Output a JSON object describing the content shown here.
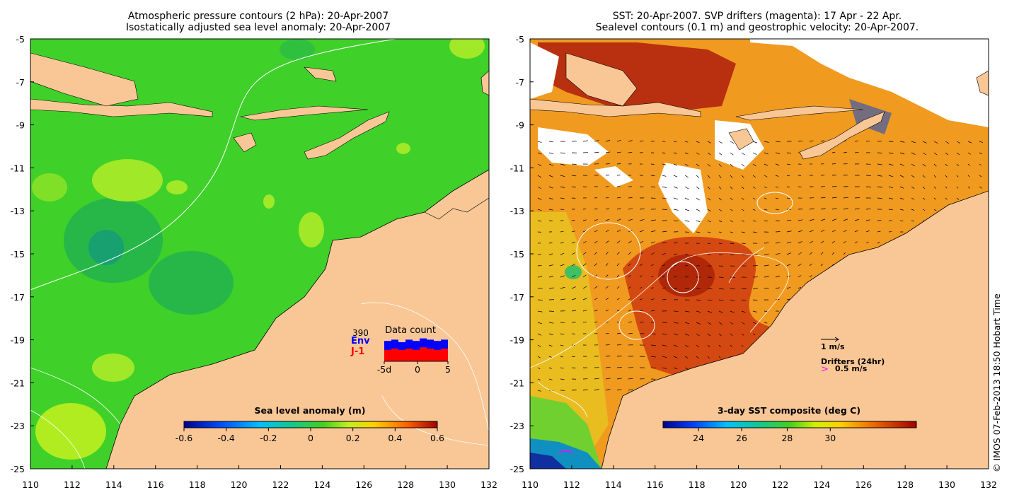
{
  "left_panel": {
    "title_line1": "Atmospheric pressure contours (2 hPa): 20-Apr-2007",
    "title_line2": "Isostatically adjusted sea level anomaly: 20-Apr-2007",
    "x_ticks": [
      "110",
      "112",
      "114",
      "116",
      "118",
      "120",
      "122",
      "124",
      "126",
      "128",
      "130",
      "132"
    ],
    "y_ticks": [
      "-5",
      "-7",
      "-9",
      "-11",
      "-13",
      "-15",
      "-17",
      "-19",
      "-21",
      "-23",
      "-25"
    ],
    "colorbar_label": "Sea level anomaly (m)",
    "colorbar_ticks": [
      "-0.6",
      "-0.4",
      "-0.2",
      "0",
      "0.2",
      "0.4",
      "0.6"
    ],
    "data_count": {
      "title": "Data count",
      "max_label": "390",
      "env_label": "Env",
      "j1_label": "J-1",
      "x_ticks": [
        "-5d",
        "0",
        "5"
      ],
      "env_fraction": [
        0.8,
        0.85,
        0.75,
        0.85,
        0.8,
        0.9,
        0.85,
        0.8,
        0.85
      ],
      "j1_fraction": [
        0.45,
        0.5,
        0.45,
        0.5,
        0.45,
        0.55,
        0.5,
        0.45,
        0.5
      ]
    }
  },
  "right_panel": {
    "title_line1": "SST: 20-Apr-2007. SVP drifters (magenta): 17 Apr - 22 Apr.",
    "title_line2": "Sealevel contours (0.1 m) and geostrophic velocity: 20-Apr-2007.",
    "x_ticks": [
      "110",
      "112",
      "114",
      "116",
      "118",
      "120",
      "122",
      "124",
      "126",
      "128",
      "130",
      "132"
    ],
    "y_ticks": [
      "-5",
      "-7",
      "-9",
      "-11",
      "-13",
      "-15",
      "-17",
      "-19",
      "-21",
      "-23",
      "-25"
    ],
    "colorbar_label": "3-day SST composite (deg C)",
    "colorbar_ticks": [
      "24",
      "26",
      "28",
      "30"
    ],
    "velocity_legend": "1 m/s",
    "drifters_legend": "Drifters (24hr)",
    "drifters_speed": "0.5 m/s"
  },
  "credit": "© IMOS 07-Feb-2013 18:50 Hobart Time",
  "colors": {
    "land": "#f9c796",
    "sea_base_left": "#3fd02a",
    "sea_base_right": "#f09a20",
    "env_bar": "#0000ff",
    "j1_bar": "#ff0000",
    "drifter": "#ff00ff"
  }
}
